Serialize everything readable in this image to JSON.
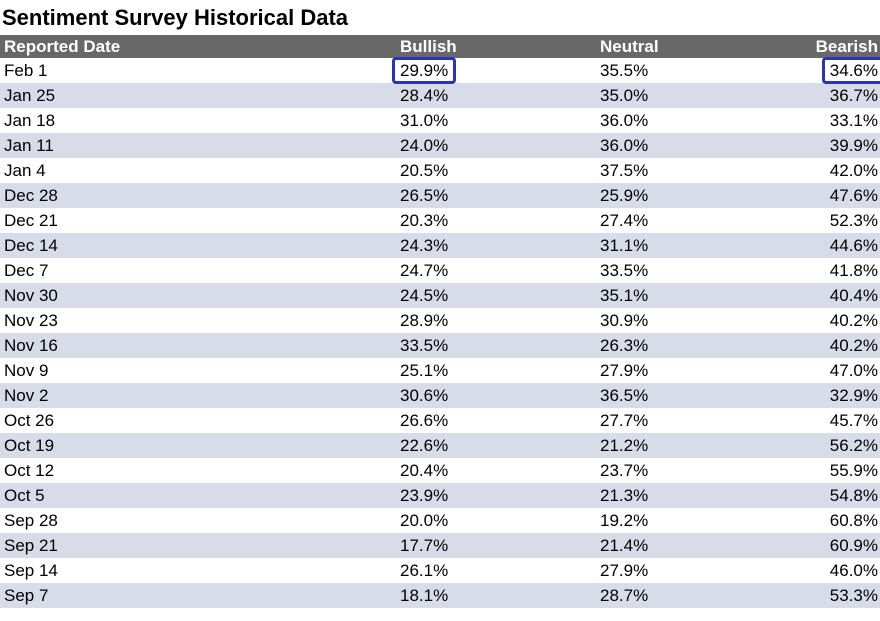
{
  "title": "Sentiment Survey Historical Data",
  "columns": {
    "date": "Reported Date",
    "bullish": "Bullish",
    "neutral": "Neutral",
    "bearish": "Bearish"
  },
  "highlight_color": "#2b34b8",
  "rows": [
    {
      "date": "Feb 1",
      "bullish": "29.9%",
      "neutral": "35.5%",
      "bearish": "34.6%",
      "highlight_bullish": true,
      "highlight_bearish": true
    },
    {
      "date": "Jan 25",
      "bullish": "28.4%",
      "neutral": "35.0%",
      "bearish": "36.7%"
    },
    {
      "date": "Jan 18",
      "bullish": "31.0%",
      "neutral": "36.0%",
      "bearish": "33.1%"
    },
    {
      "date": "Jan 11",
      "bullish": "24.0%",
      "neutral": "36.0%",
      "bearish": "39.9%"
    },
    {
      "date": "Jan 4",
      "bullish": "20.5%",
      "neutral": "37.5%",
      "bearish": "42.0%"
    },
    {
      "date": "Dec 28",
      "bullish": "26.5%",
      "neutral": "25.9%",
      "bearish": "47.6%"
    },
    {
      "date": "Dec 21",
      "bullish": "20.3%",
      "neutral": "27.4%",
      "bearish": "52.3%"
    },
    {
      "date": "Dec 14",
      "bullish": "24.3%",
      "neutral": "31.1%",
      "bearish": "44.6%"
    },
    {
      "date": "Dec 7",
      "bullish": "24.7%",
      "neutral": "33.5%",
      "bearish": "41.8%"
    },
    {
      "date": "Nov 30",
      "bullish": "24.5%",
      "neutral": "35.1%",
      "bearish": "40.4%"
    },
    {
      "date": "Nov 23",
      "bullish": "28.9%",
      "neutral": "30.9%",
      "bearish": "40.2%"
    },
    {
      "date": "Nov 16",
      "bullish": "33.5%",
      "neutral": "26.3%",
      "bearish": "40.2%"
    },
    {
      "date": "Nov 9",
      "bullish": "25.1%",
      "neutral": "27.9%",
      "bearish": "47.0%"
    },
    {
      "date": "Nov 2",
      "bullish": "30.6%",
      "neutral": "36.5%",
      "bearish": "32.9%"
    },
    {
      "date": "Oct 26",
      "bullish": "26.6%",
      "neutral": "27.7%",
      "bearish": "45.7%"
    },
    {
      "date": "Oct 19",
      "bullish": "22.6%",
      "neutral": "21.2%",
      "bearish": "56.2%"
    },
    {
      "date": "Oct 12",
      "bullish": "20.4%",
      "neutral": "23.7%",
      "bearish": "55.9%"
    },
    {
      "date": "Oct 5",
      "bullish": "23.9%",
      "neutral": "21.3%",
      "bearish": "54.8%"
    },
    {
      "date": "Sep 28",
      "bullish": "20.0%",
      "neutral": "19.2%",
      "bearish": "60.8%"
    },
    {
      "date": "Sep 21",
      "bullish": "17.7%",
      "neutral": "21.4%",
      "bearish": "60.9%"
    },
    {
      "date": "Sep 14",
      "bullish": "26.1%",
      "neutral": "27.9%",
      "bearish": "46.0%"
    },
    {
      "date": "Sep 7",
      "bullish": "18.1%",
      "neutral": "28.7%",
      "bearish": "53.3%"
    }
  ]
}
